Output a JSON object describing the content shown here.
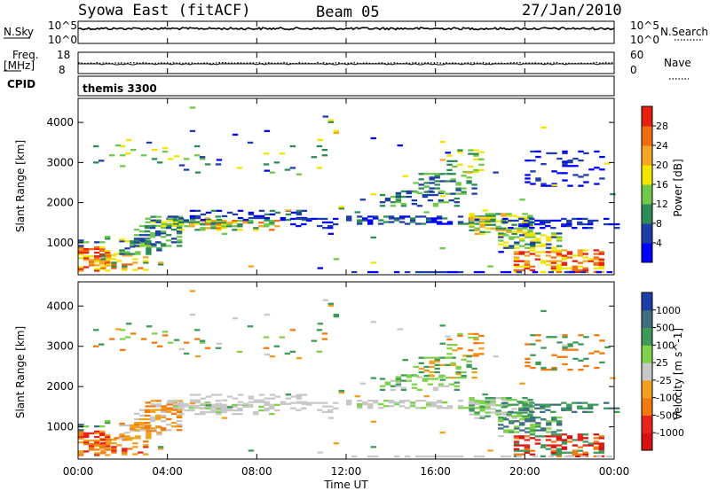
{
  "header": {
    "station": "Syowa East (fitACF)",
    "beam": "Beam 05",
    "date": "27/Jan/2010"
  },
  "top_panels": {
    "nsky_label": "N.Sky",
    "nsky_ticks": [
      "10^5",
      "10^0"
    ],
    "nsearch_label": "N.Search",
    "nsearch_ticks": [
      "10^5",
      "10^0"
    ],
    "freq_label": "Freq.",
    "freq_unit": "[MHz]",
    "freq_ticks": [
      "18",
      "8"
    ],
    "nave_label": "Nave",
    "nave_ticks": [
      "60",
      "0"
    ],
    "cpid_label": "CPID",
    "cpid_value": "themis 3300"
  },
  "chart_data": [
    {
      "type": "heatmap",
      "name": "power",
      "ylabel": "Slant Range [km]",
      "ylim": [
        200,
        4600
      ],
      "yticks": [
        "1000",
        "2000",
        "3000",
        "4000"
      ],
      "colorbar_label": "Power [dB]",
      "colorbar_ticks": [
        "4",
        "8",
        "12",
        "16",
        "20",
        "24",
        "28"
      ],
      "colors": [
        "#0000ff",
        "#1f3fa8",
        "#2e8b57",
        "#6fc84a",
        "#f2e600",
        "#f5a623",
        "#f26b0f",
        "#e81e0e"
      ]
    },
    {
      "type": "heatmap",
      "name": "velocity",
      "ylabel": "Slant Range [km]",
      "ylim": [
        200,
        4600
      ],
      "yticks": [
        "1000",
        "2000",
        "3000",
        "4000"
      ],
      "colorbar_label": "Velocity [m s^-1]",
      "colorbar_ticks": [
        "1000",
        "500",
        "100",
        "25",
        "-25",
        "-100",
        "-500",
        "-1000"
      ],
      "colors": [
        "#1f3fa8",
        "#3f6f7f",
        "#3e9a5a",
        "#7fd24a",
        "#c8c8c8",
        "#f2a020",
        "#f27a0f",
        "#e8231b",
        "#d81010"
      ]
    }
  ],
  "time_axis": {
    "label": "Time UT",
    "ticks": [
      "00:00",
      "04:00",
      "08:00",
      "12:00",
      "16:00",
      "20:00",
      "00:00"
    ]
  }
}
